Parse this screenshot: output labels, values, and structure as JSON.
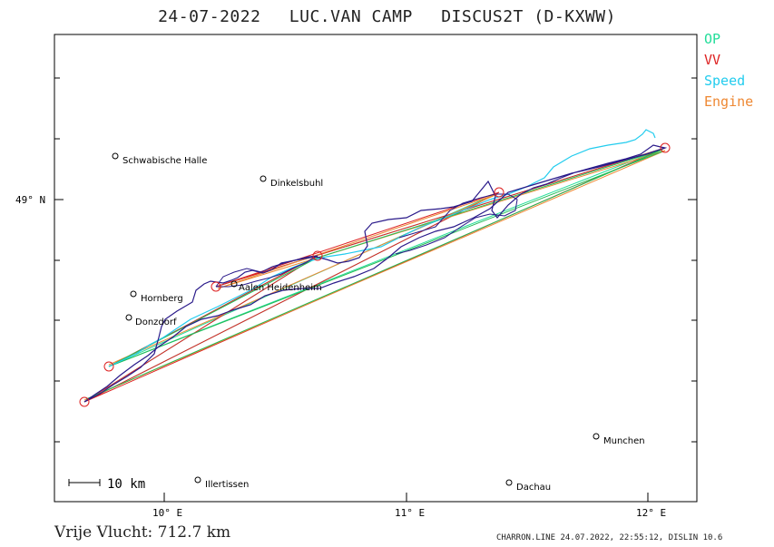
{
  "header": {
    "date": "24-07-2022",
    "pilot": "LUC.VAN CAMP",
    "glider": "DISCUS2T (D-KXWW)"
  },
  "legend": [
    {
      "label": "OP",
      "color": "#22dd99"
    },
    {
      "label": "VV",
      "color": "#dd2222"
    },
    {
      "label": "Speed",
      "color": "#22ccee"
    },
    {
      "label": "Engine",
      "color": "#ee8833"
    }
  ],
  "axes": {
    "x_ticks": [
      "10° E",
      "11° E",
      "12° E"
    ],
    "y_ticks": [
      "49° N"
    ]
  },
  "scale_label": "10 km",
  "places": [
    {
      "name": "Schwabische Halle"
    },
    {
      "name": "Dinkelsbuhl"
    },
    {
      "name": "Hornberg"
    },
    {
      "name": "Aalen Heidenheim"
    },
    {
      "name": "Donzdorf"
    },
    {
      "name": "Munchen"
    },
    {
      "name": "Illertissen"
    },
    {
      "name": "Dachau"
    }
  ],
  "footer": {
    "distance": "Vrije Vlucht:  712.7 km",
    "credit": "CHARRON.LINE 24.07.2022, 22:55:12, DISLIN 10.6"
  },
  "colors": {
    "track": "#2a1a8a",
    "frame": "#000000"
  }
}
